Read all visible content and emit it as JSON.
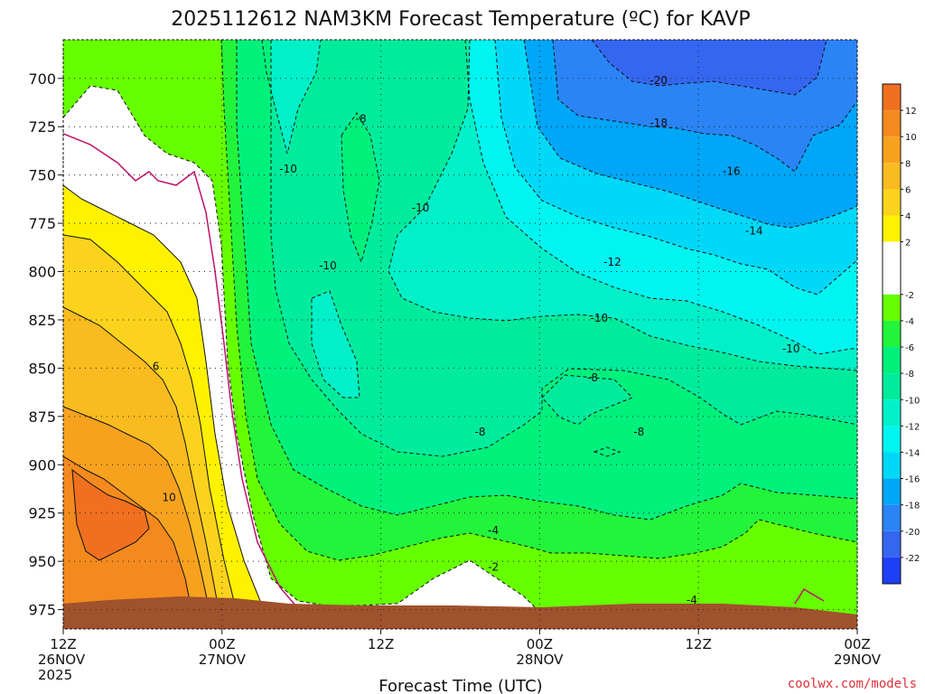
{
  "chart_data": {
    "type": "heatmap",
    "title": "2025112612 NAM3KM Forecast Temperature (ºC) for KAVP",
    "xlabel": "Forecast Time (UTC)",
    "credit": "coolwx.com/models",
    "y_ticks": [
      "700",
      "725",
      "750",
      "775",
      "800",
      "825",
      "850",
      "875",
      "900",
      "925",
      "950",
      "975"
    ],
    "y_values": [
      700,
      725,
      750,
      775,
      800,
      825,
      850,
      875,
      900,
      925,
      950,
      975
    ],
    "ylim": [
      680,
      985
    ],
    "x_ticks": [
      {
        "hour": 0,
        "line1": "12Z",
        "line2": "26NOV",
        "line3": "2025"
      },
      {
        "hour": 12,
        "line1": "00Z",
        "line2": "27NOV",
        "line3": ""
      },
      {
        "hour": 24,
        "line1": "12Z",
        "line2": "",
        "line3": ""
      },
      {
        "hour": 36,
        "line1": "00Z",
        "line2": "28NOV",
        "line3": ""
      },
      {
        "hour": 48,
        "line1": "12Z",
        "line2": "",
        "line3": ""
      },
      {
        "hour": 60,
        "line1": "00Z",
        "line2": "29NOV",
        "line3": ""
      }
    ],
    "xlim": [
      0,
      60
    ],
    "colorbar_labels": [
      "12",
      "10",
      "8",
      "6",
      "4",
      "2",
      "-2",
      "-4",
      "-6",
      "-8",
      "-10",
      "-12",
      "-14",
      "-16",
      "-18",
      "-20",
      "-22"
    ],
    "colorbar_bands": [
      {
        "lo": 12,
        "hi": 14,
        "color": "#f07020"
      },
      {
        "lo": 10,
        "hi": 12,
        "color": "#f48a1e"
      },
      {
        "lo": 8,
        "hi": 10,
        "color": "#f7a21f"
      },
      {
        "lo": 6,
        "hi": 8,
        "color": "#f9bb1f"
      },
      {
        "lo": 4,
        "hi": 6,
        "color": "#fbd31c"
      },
      {
        "lo": 2,
        "hi": 4,
        "color": "#fff200"
      },
      {
        "lo": -2,
        "hi": 2,
        "color": "#ffffff"
      },
      {
        "lo": -4,
        "hi": -2,
        "color": "#66ff00"
      },
      {
        "lo": -6,
        "hi": -4,
        "color": "#22f43c"
      },
      {
        "lo": -8,
        "hi": -6,
        "color": "#00f07c"
      },
      {
        "lo": -10,
        "hi": -8,
        "color": "#00ec9c"
      },
      {
        "lo": -12,
        "hi": -10,
        "color": "#00f0c8"
      },
      {
        "lo": -14,
        "hi": -12,
        "color": "#00f4f0"
      },
      {
        "lo": -16,
        "hi": -14,
        "color": "#00d8f8"
      },
      {
        "lo": -18,
        "hi": -16,
        "color": "#00a6f8"
      },
      {
        "lo": -20,
        "hi": -18,
        "color": "#2a84f6"
      },
      {
        "lo": -22,
        "hi": -20,
        "color": "#3466f0"
      },
      {
        "lo": -24,
        "hi": -22,
        "color": "#1e3ef8"
      }
    ],
    "contour_labels": [
      {
        "text": "-20",
        "hour": 45.0,
        "p": 701
      },
      {
        "text": "-18",
        "hour": 45.0,
        "p": 723
      },
      {
        "text": "-16",
        "hour": 50.5,
        "p": 748
      },
      {
        "text": "-14",
        "hour": 52.2,
        "p": 779
      },
      {
        "text": "-12",
        "hour": 41.5,
        "p": 795
      },
      {
        "text": "-10",
        "hour": 40.5,
        "p": 824
      },
      {
        "text": "-10",
        "hour": 55.0,
        "p": 840
      },
      {
        "text": "-8",
        "hour": 22.5,
        "p": 721
      },
      {
        "text": "-10",
        "hour": 17.0,
        "p": 747
      },
      {
        "text": "-10",
        "hour": 27.0,
        "p": 767
      },
      {
        "text": "-10",
        "hour": 20.0,
        "p": 797
      },
      {
        "text": "-8",
        "hour": 40.0,
        "p": 855
      },
      {
        "text": "-8",
        "hour": 43.5,
        "p": 883
      },
      {
        "text": "-8",
        "hour": 31.5,
        "p": 883
      },
      {
        "text": "-4",
        "hour": 32.5,
        "p": 934
      },
      {
        "text": "-2",
        "hour": 32.5,
        "p": 953
      },
      {
        "text": "-4",
        "hour": 47.5,
        "p": 970
      },
      {
        "text": "6",
        "hour": 7.0,
        "p": 849
      },
      {
        "text": "10",
        "hour": 8.0,
        "p": 917
      }
    ],
    "series_note": "Filled temperature contours (ºC) versus pressure level (hPa) and forecast hour",
    "band_regions": [
      {
        "band": "warm_orange",
        "color": "#f7a21f",
        "hours": [
          0,
          1,
          2,
          3,
          4,
          5,
          6,
          7,
          8,
          9,
          10,
          11,
          11.6
        ],
        "top_p": [
          855,
          856,
          858,
          858,
          868,
          880,
          885,
          893,
          900,
          910,
          925,
          945,
          980
        ]
      },
      {
        "band": "warm_dark",
        "color": "#f48a1e",
        "hours": [
          0,
          2,
          4,
          6,
          8,
          9,
          10,
          10.3
        ],
        "top_p": [
          915,
          905,
          902,
          900,
          905,
          912,
          930,
          980
        ]
      }
    ],
    "ground": {
      "color": "#a0522d"
    }
  }
}
